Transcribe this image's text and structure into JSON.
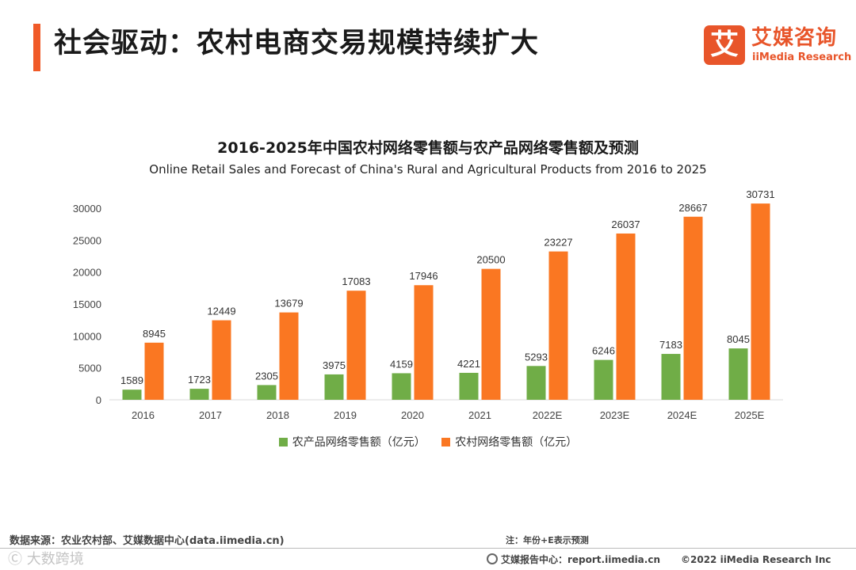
{
  "header": {
    "title": "社会驱动：农村电商交易规模持续扩大",
    "logo": {
      "mark": "艾",
      "name_cn": "艾媒咨询",
      "name_en": "iiMedia Research"
    }
  },
  "colors": {
    "accent": "#f05a28",
    "green": "#70ad47",
    "orange": "#fa7722"
  },
  "chart_data": {
    "type": "bar",
    "title": "2016-2025年中国农村网络零售额与农产品网络零售额及预测",
    "subtitle": "Online Retail Sales and Forecast of China's Rural and Agricultural Products from 2016 to 2025",
    "categories": [
      "2016",
      "2017",
      "2018",
      "2019",
      "2020",
      "2021",
      "2022E",
      "2023E",
      "2024E",
      "2025E"
    ],
    "series": [
      {
        "name": "农产品网络零售额（亿元）",
        "color": "#70ad47",
        "values": [
          1589,
          1723,
          2305,
          3975,
          4159,
          4221,
          5293,
          6246,
          7183,
          8045
        ]
      },
      {
        "name": "农村网络零售额（亿元）",
        "color": "#fa7722",
        "values": [
          8945,
          12449,
          13679,
          17083,
          17946,
          20500,
          23227,
          26037,
          28667,
          30731
        ]
      }
    ],
    "yticks": [
      0,
      5000,
      10000,
      15000,
      20000,
      25000,
      30000
    ],
    "ylim": [
      0,
      30000
    ],
    "legend_position": "bottom",
    "grid": false,
    "xlabel": "",
    "ylabel": ""
  },
  "footer": {
    "source": "数据来源：农业农村部、艾媒数据中心(data.iimedia.cn)",
    "note": "注：年份+E表示预测",
    "watermark": "Ⓒ 大数跨境",
    "report_center": "艾媒报告中心：report.iimedia.cn",
    "copyright": "©2022  iiMedia Research  Inc"
  }
}
